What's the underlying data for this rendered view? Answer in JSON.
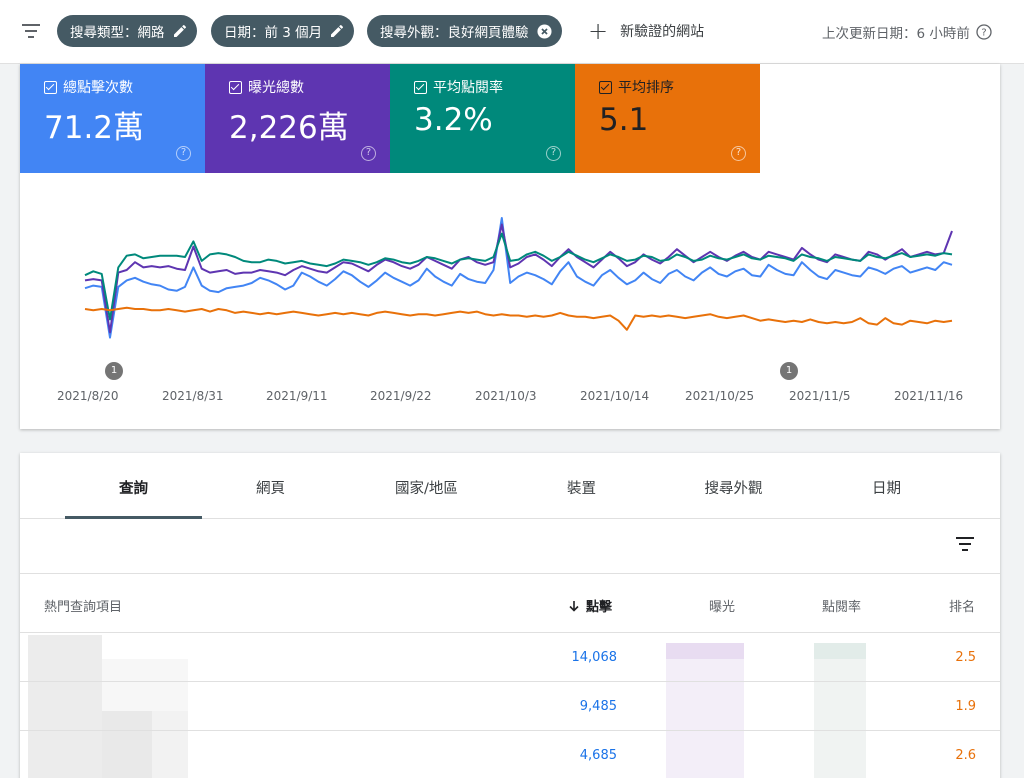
{
  "filter_bar": {
    "chips": [
      {
        "label": "搜尋類型：網路",
        "action": "edit"
      },
      {
        "label": "日期：前 3 個月",
        "action": "edit"
      },
      {
        "label": "搜尋外觀：良好網頁體驗",
        "action": "remove"
      }
    ],
    "add_site_label": "新驗證的網站",
    "last_updated": "上次更新日期：6 小時前"
  },
  "metrics": [
    {
      "label": "總點擊次數",
      "value": "71.2萬",
      "color": "#4285f4",
      "checked": true
    },
    {
      "label": "曝光總數",
      "value": "2,226萬",
      "color": "#5e35b1",
      "checked": true
    },
    {
      "label": "平均點閱率",
      "value": "3.2%",
      "color": "#00897b",
      "checked": true
    },
    {
      "label": "平均排序",
      "value": "5.1",
      "color": "#e8710a",
      "checked": true
    }
  ],
  "chart_data": {
    "type": "line",
    "x_ticks": [
      "2021/8/20",
      "2021/8/31",
      "2021/9/11",
      "2021/9/22",
      "2021/10/3",
      "2021/10/14",
      "2021/10/25",
      "2021/11/5",
      "2021/11/16"
    ],
    "annotations": [
      {
        "label": "1",
        "date": "2021/8/20"
      },
      {
        "label": "1",
        "date": "2021/11/5"
      }
    ],
    "series": [
      {
        "name": "總點擊次數",
        "color": "#4285f4",
        "values": [
          0.46,
          0.48,
          0.47,
          0.08,
          0.47,
          0.52,
          0.54,
          0.51,
          0.49,
          0.48,
          0.45,
          0.44,
          0.47,
          0.62,
          0.48,
          0.44,
          0.43,
          0.46,
          0.47,
          0.48,
          0.5,
          0.54,
          0.52,
          0.49,
          0.45,
          0.48,
          0.58,
          0.55,
          0.51,
          0.48,
          0.53,
          0.59,
          0.56,
          0.51,
          0.47,
          0.52,
          0.58,
          0.54,
          0.51,
          0.48,
          0.52,
          0.61,
          0.55,
          0.51,
          0.48,
          0.57,
          0.53,
          0.51,
          0.5,
          0.6,
          1.0,
          0.5,
          0.55,
          0.58,
          0.56,
          0.53,
          0.49,
          0.59,
          0.66,
          0.55,
          0.51,
          0.48,
          0.56,
          0.6,
          0.54,
          0.49,
          0.52,
          0.58,
          0.53,
          0.5,
          0.57,
          0.6,
          0.55,
          0.52,
          0.58,
          0.62,
          0.57,
          0.55,
          0.59,
          0.61,
          0.56,
          0.55,
          0.64,
          0.6,
          0.57,
          0.56,
          0.66,
          0.6,
          0.55,
          0.53,
          0.6,
          0.58,
          0.56,
          0.55,
          0.62,
          0.6,
          0.57,
          0.61,
          0.63,
          0.58,
          0.6,
          0.62,
          0.6,
          0.66,
          0.64
        ]
      },
      {
        "name": "曝光總數",
        "color": "#5e35b1",
        "values": [
          0.52,
          0.53,
          0.52,
          0.12,
          0.58,
          0.6,
          0.66,
          0.62,
          0.63,
          0.62,
          0.63,
          0.61,
          0.6,
          0.78,
          0.61,
          0.58,
          0.59,
          0.6,
          0.57,
          0.58,
          0.58,
          0.6,
          0.59,
          0.58,
          0.56,
          0.6,
          0.63,
          0.61,
          0.59,
          0.58,
          0.62,
          0.66,
          0.65,
          0.62,
          0.59,
          0.64,
          0.68,
          0.66,
          0.63,
          0.61,
          0.64,
          0.7,
          0.67,
          0.64,
          0.61,
          0.68,
          0.7,
          0.66,
          0.64,
          0.66,
          0.95,
          0.62,
          0.65,
          0.7,
          0.72,
          0.68,
          0.63,
          0.7,
          0.76,
          0.7,
          0.66,
          0.62,
          0.68,
          0.74,
          0.69,
          0.63,
          0.66,
          0.72,
          0.68,
          0.65,
          0.7,
          0.76,
          0.71,
          0.66,
          0.7,
          0.74,
          0.7,
          0.67,
          0.71,
          0.74,
          0.7,
          0.68,
          0.74,
          0.72,
          0.7,
          0.68,
          0.77,
          0.72,
          0.68,
          0.66,
          0.72,
          0.7,
          0.68,
          0.67,
          0.74,
          0.72,
          0.68,
          0.72,
          0.76,
          0.7,
          0.72,
          0.74,
          0.72,
          0.73,
          0.9
        ]
      },
      {
        "name": "平均點閱率",
        "color": "#00897b",
        "values": [
          0.56,
          0.59,
          0.57,
          0.22,
          0.62,
          0.71,
          0.72,
          0.69,
          0.7,
          0.71,
          0.71,
          0.71,
          0.7,
          0.82,
          0.67,
          0.72,
          0.73,
          0.72,
          0.7,
          0.67,
          0.66,
          0.66,
          0.68,
          0.67,
          0.65,
          0.66,
          0.67,
          0.65,
          0.64,
          0.63,
          0.65,
          0.68,
          0.67,
          0.66,
          0.64,
          0.66,
          0.69,
          0.68,
          0.66,
          0.65,
          0.67,
          0.7,
          0.69,
          0.67,
          0.65,
          0.68,
          0.69,
          0.68,
          0.67,
          0.7,
          0.88,
          0.67,
          0.68,
          0.72,
          0.74,
          0.71,
          0.67,
          0.7,
          0.74,
          0.71,
          0.68,
          0.66,
          0.69,
          0.72,
          0.7,
          0.67,
          0.68,
          0.71,
          0.7,
          0.67,
          0.68,
          0.72,
          0.7,
          0.67,
          0.68,
          0.71,
          0.69,
          0.68,
          0.7,
          0.72,
          0.69,
          0.68,
          0.71,
          0.7,
          0.69,
          0.67,
          0.72,
          0.7,
          0.69,
          0.67,
          0.7,
          0.69,
          0.68,
          0.67,
          0.72,
          0.7,
          0.69,
          0.71,
          0.73,
          0.7,
          0.71,
          0.72,
          0.71,
          0.73,
          0.72
        ]
      },
      {
        "name": "平均排序",
        "color": "#e8710a",
        "values": [
          0.3,
          0.29,
          0.3,
          0.29,
          0.3,
          0.31,
          0.3,
          0.3,
          0.29,
          0.29,
          0.3,
          0.29,
          0.28,
          0.29,
          0.3,
          0.28,
          0.3,
          0.29,
          0.27,
          0.28,
          0.27,
          0.26,
          0.27,
          0.26,
          0.27,
          0.28,
          0.27,
          0.26,
          0.25,
          0.26,
          0.27,
          0.26,
          0.27,
          0.26,
          0.25,
          0.27,
          0.28,
          0.27,
          0.26,
          0.25,
          0.26,
          0.26,
          0.25,
          0.26,
          0.27,
          0.28,
          0.27,
          0.28,
          0.26,
          0.25,
          0.26,
          0.25,
          0.25,
          0.24,
          0.25,
          0.24,
          0.25,
          0.27,
          0.25,
          0.24,
          0.24,
          0.23,
          0.24,
          0.25,
          0.21,
          0.14,
          0.25,
          0.24,
          0.25,
          0.24,
          0.25,
          0.24,
          0.23,
          0.24,
          0.25,
          0.26,
          0.24,
          0.23,
          0.24,
          0.25,
          0.23,
          0.21,
          0.22,
          0.21,
          0.2,
          0.21,
          0.2,
          0.22,
          0.2,
          0.19,
          0.2,
          0.19,
          0.2,
          0.23,
          0.19,
          0.18,
          0.23,
          0.19,
          0.18,
          0.21,
          0.2,
          0.19,
          0.21,
          0.2,
          0.21
        ]
      }
    ]
  },
  "tabs": [
    "查詢",
    "網頁",
    "國家/地區",
    "裝置",
    "搜尋外觀",
    "日期"
  ],
  "active_tab": "查詢",
  "table": {
    "headers": {
      "query": "熱門查詢項目",
      "clicks": "點擊",
      "impressions": "曝光",
      "ctr": "點閱率",
      "position": "排名"
    },
    "sort_icon": "arrow-down-icon",
    "rows": [
      {
        "clicks": "14,068",
        "position": "2.5"
      },
      {
        "clicks": "9,485",
        "position": "1.9"
      },
      {
        "clicks": "4,685",
        "position": "2.6"
      }
    ]
  },
  "icons": {
    "filter": "filter-icon",
    "edit": "pencil-icon",
    "remove": "close-circle-icon",
    "add": "plus-icon",
    "help": "help-circle-icon"
  }
}
